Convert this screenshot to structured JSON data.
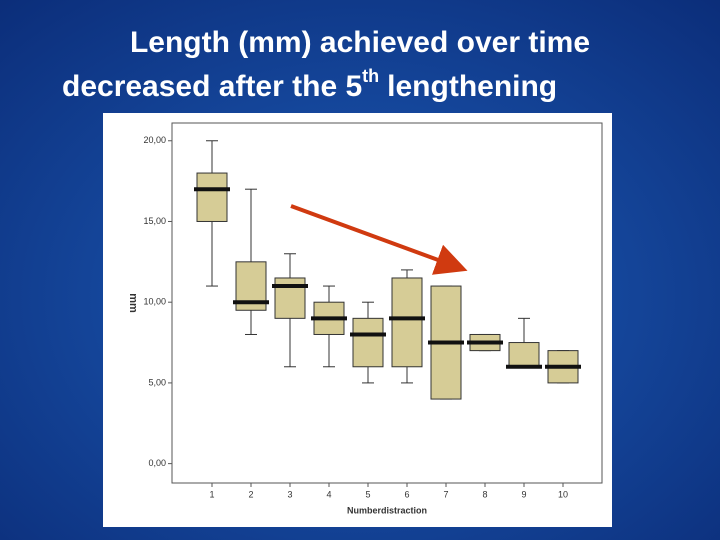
{
  "chart_data": {
    "type": "boxplot",
    "title": {
      "line1": "Length (mm) achieved over time",
      "line2": "decreased after the 5",
      "superscript": "th",
      "line2_end": "lengthening"
    },
    "x_label": "Numberdistraction",
    "y_label": "mm",
    "categories": [
      "1",
      "2",
      "3",
      "4",
      "5",
      "6",
      "7",
      "8",
      "9",
      "10"
    ],
    "min": [
      11,
      8,
      6,
      6,
      5,
      5,
      4,
      7,
      6,
      5
    ],
    "q1": [
      15,
      9.5,
      9,
      8,
      6,
      6,
      4,
      7,
      6,
      5
    ],
    "median": [
      17,
      10,
      11,
      9,
      8,
      9,
      7.5,
      7.5,
      6,
      6
    ],
    "q3": [
      18,
      12.5,
      11.5,
      10,
      9,
      11.5,
      11,
      8,
      7.5,
      7
    ],
    "max": [
      20,
      17,
      13,
      11,
      10,
      12,
      11,
      8,
      9,
      7
    ],
    "color": "#d6cc96",
    "ylim": [
      -1.2,
      21.1
    ],
    "yticks": [
      {
        "value": 0,
        "label": "0,00"
      },
      {
        "value": 5,
        "label": "5,00"
      },
      {
        "value": 10,
        "label": "10,00"
      },
      {
        "value": 15,
        "label": "15,00"
      },
      {
        "value": 20,
        "label": "20,00"
      }
    ]
  }
}
